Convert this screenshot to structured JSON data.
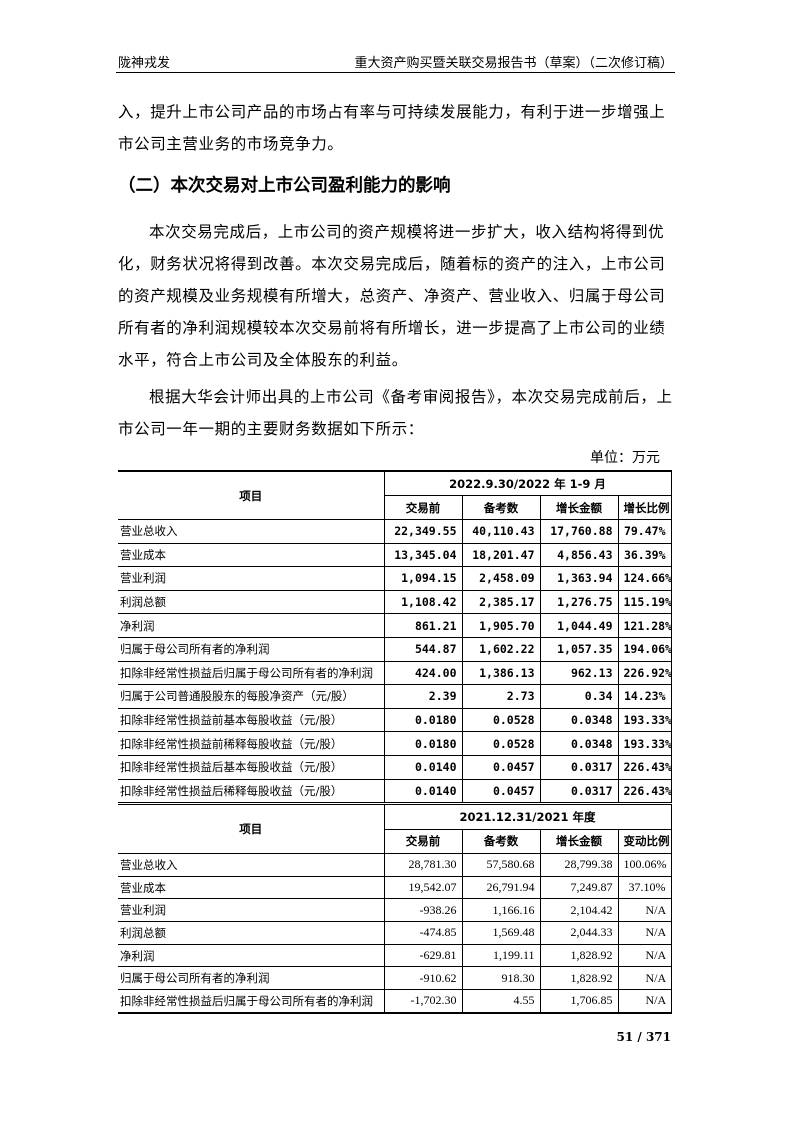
{
  "header": {
    "left": "陇神戎发",
    "right": "重大资产购买暨关联交易报告书（草案）（二次修订稿）"
  },
  "paragraphs": [
    "入，提升上市公司产品的市场占有率与可持续发展能力，有利于进一步增强上市公司主营业务的市场竞争力。",
    "本次交易完成后，上市公司的资产规模将进一步扩大，收入结构将得到优化，财务状况将得到改善。本次交易完成后，随着标的资产的注入，上市公司的资产规模及业务规模有所增大，总资产、净资产、营业收入、归属于母公司所有者的净利润规模较本次交易前将有所增长，进一步提高了上市公司的业绩水平，符合上市公司及全体股东的利益。",
    "根据大华会计师出具的上市公司《备考审阅报告》，本次交易完成前后，上市公司一年一期的主要财务数据如下所示："
  ],
  "section_title": "（二）本次交易对上市公司盈利能力的影响",
  "unit": "单位：万元",
  "table1": {
    "item_header": "项目",
    "period": "2022.9.30/2022 年 1-9 月",
    "columns": [
      "交易前",
      "备考数",
      "增长金额",
      "增长比例"
    ],
    "rows": [
      [
        "营业总收入",
        "22,349.55",
        "40,110.43",
        "17,760.88",
        "79.47%"
      ],
      [
        "营业成本",
        "13,345.04",
        "18,201.47",
        "4,856.43",
        "36.39%"
      ],
      [
        "营业利润",
        "1,094.15",
        "2,458.09",
        "1,363.94",
        "124.66%"
      ],
      [
        "利润总额",
        "1,108.42",
        "2,385.17",
        "1,276.75",
        "115.19%"
      ],
      [
        "净利润",
        "861.21",
        "1,905.70",
        "1,044.49",
        "121.28%"
      ],
      [
        "归属于母公司所有者的净利润",
        "544.87",
        "1,602.22",
        "1,057.35",
        "194.06%"
      ],
      [
        "扣除非经常性损益后归属于母公司所有者的净利润",
        "424.00",
        "1,386.13",
        "962.13",
        "226.92%"
      ],
      [
        "归属于公司普通股股东的每股净资产（元/股）",
        "2.39",
        "2.73",
        "0.34",
        "14.23%"
      ],
      [
        "扣除非经常性损益前基本每股收益（元/股）",
        "0.0180",
        "0.0528",
        "0.0348",
        "193.33%"
      ],
      [
        "扣除非经常性损益前稀释每股收益（元/股）",
        "0.0180",
        "0.0528",
        "0.0348",
        "193.33%"
      ],
      [
        "扣除非经常性损益后基本每股收益（元/股）",
        "0.0140",
        "0.0457",
        "0.0317",
        "226.43%"
      ],
      [
        "扣除非经常性损益后稀释每股收益（元/股）",
        "0.0140",
        "0.0457",
        "0.0317",
        "226.43%"
      ]
    ]
  },
  "table2": {
    "item_header": "项目",
    "period": "2021.12.31/2021 年度",
    "columns": [
      "交易前",
      "备考数",
      "增长金额",
      "变动比例"
    ],
    "rows": [
      [
        "营业总收入",
        "28,781.30",
        "57,580.68",
        "28,799.38",
        "100.06%"
      ],
      [
        "营业成本",
        "19,542.07",
        "26,791.94",
        "7,249.87",
        "37.10%"
      ],
      [
        "营业利润",
        "-938.26",
        "1,166.16",
        "2,104.42",
        "N/A"
      ],
      [
        "利润总额",
        "-474.85",
        "1,569.48",
        "2,044.33",
        "N/A"
      ],
      [
        "净利润",
        "-629.81",
        "1,199.11",
        "1,828.92",
        "N/A"
      ],
      [
        "归属于母公司所有者的净利润",
        "-910.62",
        "918.30",
        "1,828.92",
        "N/A"
      ],
      [
        "扣除非经常性损益后归属于母公司所有者的净利润",
        "-1,702.30",
        "4.55",
        "1,706.85",
        "N/A"
      ]
    ]
  },
  "page_number": "51 / 371"
}
